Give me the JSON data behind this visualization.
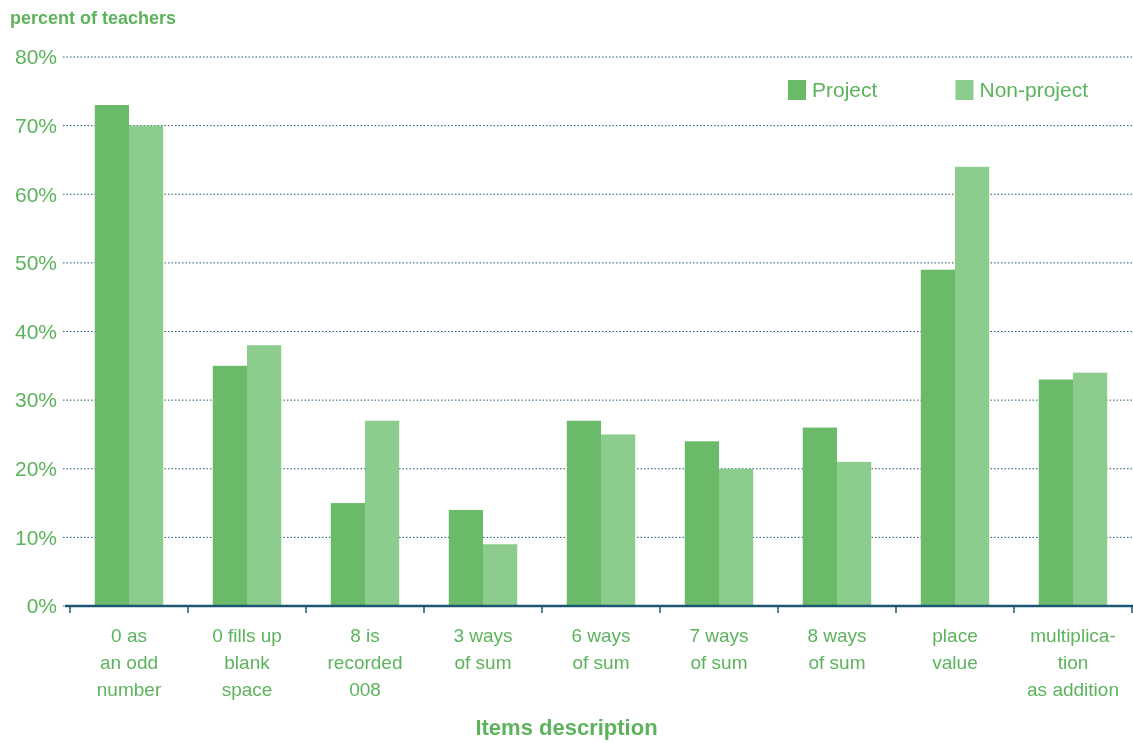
{
  "chart_data": {
    "type": "bar",
    "ylabel": "percent of teachers",
    "xlabel": "Items description",
    "categories": [
      "0 as\nan odd\nnumber",
      "0 fills up\nblank\nspace",
      "8 is\nrecorded\n008",
      "3 ways\nof sum",
      "6 ways\nof sum",
      "7 ways\nof sum",
      "8 ways\nof sum",
      "place\nvalue",
      "multiplica-\ntion\nas addition"
    ],
    "series": [
      {
        "name": "Project",
        "color": "#6aba6a",
        "values": [
          73,
          35,
          15,
          14,
          27,
          24,
          26,
          49,
          33
        ]
      },
      {
        "name": "Non-project",
        "color": "#8ccc8c",
        "values": [
          70,
          38,
          27,
          9,
          25,
          20,
          21,
          64,
          34
        ]
      }
    ],
    "ylim": [
      0,
      80
    ],
    "yticks": [
      {
        "value": 0,
        "label": "0%"
      },
      {
        "value": 10,
        "label": "10%"
      },
      {
        "value": 20,
        "label": "20%"
      },
      {
        "value": 30,
        "label": "30%"
      },
      {
        "value": 40,
        "label": "40%"
      },
      {
        "value": 50,
        "label": "50%"
      },
      {
        "value": 60,
        "label": "60%"
      },
      {
        "value": 70,
        "label": "70%"
      },
      {
        "value": 80,
        "label": "80%"
      }
    ],
    "grid": "y",
    "legend": "top right"
  }
}
